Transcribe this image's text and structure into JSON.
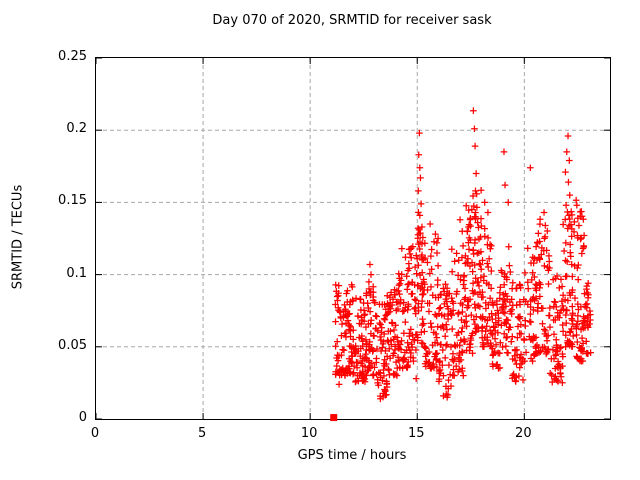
{
  "chart_data": {
    "type": "scatter",
    "title": "Day 070 of 2020, SRMTID for receiver sask",
    "xlabel": "GPS time / hours",
    "ylabel": "SRMTID / TECUs",
    "xlim": [
      0,
      24
    ],
    "ylim": [
      0,
      0.25
    ],
    "xticks": [
      0,
      5,
      10,
      15,
      20
    ],
    "xtick_labels": [
      "0",
      "5",
      "10",
      "15",
      "20"
    ],
    "yticks": [
      0,
      0.05,
      0.1,
      0.15,
      0.2,
      0.25
    ],
    "ytick_labels": [
      "0",
      "0.05",
      "0.1",
      "0.15",
      "0.2",
      "0.25"
    ],
    "grid": true,
    "grid_color": "#a8a8a8",
    "axis_color": "#000000",
    "background": "#ffffff",
    "legend": "none",
    "series": [
      {
        "name": "SRMTID",
        "color": "#ff0000",
        "marker": "plus",
        "start_marker": {
          "x": 11.1,
          "y": 0.001,
          "marker": "filled-square"
        },
        "x_data_range": [
          11.1,
          23.1
        ],
        "y_data_range": [
          0.0,
          0.2135
        ],
        "notable_points": [
          [
            12.79,
            0.107
          ],
          [
            12.84,
            0.1
          ],
          [
            14.28,
            0.118
          ],
          [
            14.45,
            0.112
          ],
          [
            15.1,
            0.198
          ],
          [
            15.07,
            0.183
          ],
          [
            15.12,
            0.174
          ],
          [
            15.15,
            0.167
          ],
          [
            15.05,
            0.158
          ],
          [
            15.18,
            0.149
          ],
          [
            15.12,
            0.141
          ],
          [
            15.22,
            0.133
          ],
          [
            15.6,
            0.135
          ],
          [
            15.85,
            0.128
          ],
          [
            17.0,
            0.138
          ],
          [
            17.1,
            0.13
          ],
          [
            17.62,
            0.2135
          ],
          [
            17.67,
            0.201
          ],
          [
            17.7,
            0.189
          ],
          [
            17.72,
            0.158
          ],
          [
            17.75,
            0.17
          ],
          [
            17.55,
            0.145
          ],
          [
            17.48,
            0.139
          ],
          [
            17.82,
            0.136
          ],
          [
            18.15,
            0.15
          ],
          [
            18.3,
            0.143
          ],
          [
            19.05,
            0.185
          ],
          [
            19.1,
            0.162
          ],
          [
            19.25,
            0.15
          ],
          [
            20.28,
            0.174
          ],
          [
            20.92,
            0.143
          ],
          [
            20.98,
            0.134
          ],
          [
            22.04,
            0.196
          ],
          [
            21.98,
            0.185
          ],
          [
            22.1,
            0.179
          ],
          [
            21.92,
            0.171
          ],
          [
            22.06,
            0.164
          ],
          [
            22.12,
            0.155
          ],
          [
            21.95,
            0.148
          ],
          [
            22.08,
            0.141
          ],
          [
            22.42,
            0.1515
          ],
          [
            22.5,
            0.139
          ],
          [
            22.55,
            0.134
          ],
          [
            22.48,
            0.127
          ],
          [
            13.28,
            0.014
          ],
          [
            13.5,
            0.019
          ],
          [
            16.22,
            0.016
          ],
          [
            16.45,
            0.021
          ],
          [
            19.6,
            0.026
          ],
          [
            21.5,
            0.027
          ],
          [
            14.95,
            0.028
          ],
          [
            11.35,
            0.024
          ]
        ],
        "band_clusters": [
          [
            11.15,
            11.6,
            45,
            0.03,
            0.095,
            1.6
          ],
          [
            11.6,
            12.1,
            60,
            0.03,
            0.1,
            1.7
          ],
          [
            12.1,
            12.6,
            55,
            0.025,
            0.085,
            1.5
          ],
          [
            12.6,
            13.1,
            55,
            0.03,
            0.095,
            1.6
          ],
          [
            13.1,
            13.6,
            50,
            0.015,
            0.08,
            1.3
          ],
          [
            13.6,
            14.1,
            50,
            0.03,
            0.09,
            1.4
          ],
          [
            14.1,
            14.6,
            50,
            0.035,
            0.105,
            1.4
          ],
          [
            14.6,
            15.0,
            40,
            0.04,
            0.12,
            1.5
          ],
          [
            15.0,
            15.35,
            45,
            0.05,
            0.145,
            1.2
          ],
          [
            15.35,
            16.0,
            60,
            0.035,
            0.125,
            1.6
          ],
          [
            16.0,
            16.6,
            55,
            0.015,
            0.095,
            1.3
          ],
          [
            16.6,
            17.2,
            60,
            0.03,
            0.12,
            1.5
          ],
          [
            17.2,
            17.6,
            45,
            0.045,
            0.15,
            1.3
          ],
          [
            17.6,
            18.0,
            50,
            0.06,
            0.16,
            1.2
          ],
          [
            18.0,
            18.5,
            50,
            0.05,
            0.135,
            1.4
          ],
          [
            18.5,
            19.0,
            45,
            0.035,
            0.105,
            1.4
          ],
          [
            19.0,
            19.4,
            35,
            0.045,
            0.12,
            1.4
          ],
          [
            19.4,
            20.0,
            50,
            0.025,
            0.1,
            1.4
          ],
          [
            20.0,
            20.6,
            50,
            0.04,
            0.12,
            1.5
          ],
          [
            20.6,
            21.2,
            55,
            0.045,
            0.145,
            1.5
          ],
          [
            21.2,
            21.8,
            55,
            0.025,
            0.1,
            1.4
          ],
          [
            21.8,
            22.3,
            60,
            0.05,
            0.145,
            1.4
          ],
          [
            22.3,
            22.8,
            55,
            0.04,
            0.15,
            1.5
          ],
          [
            22.8,
            23.1,
            30,
            0.045,
            0.1,
            1.4
          ]
        ],
        "seed": 2020070
      }
    ]
  }
}
